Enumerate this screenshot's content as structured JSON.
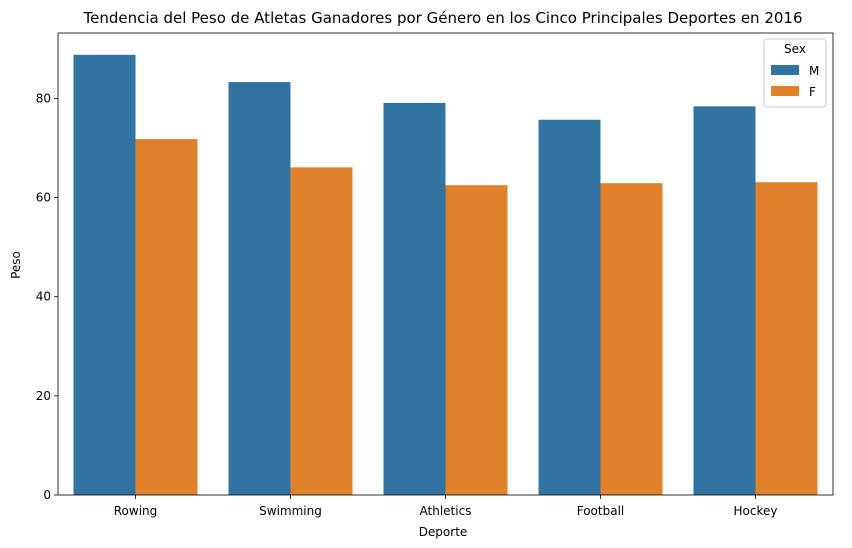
{
  "chart_data": {
    "type": "bar",
    "title": "Tendencia del Peso de Atletas Ganadores por Género en los Cinco Principales Deportes en 2016",
    "xlabel": "Deporte",
    "ylabel": "Peso",
    "categories": [
      "Rowing",
      "Swimming",
      "Athletics",
      "Football",
      "Hockey"
    ],
    "series": [
      {
        "name": "M",
        "values": [
          88.8,
          83.3,
          79.1,
          75.7,
          78.4
        ]
      },
      {
        "name": "F",
        "values": [
          71.8,
          66.1,
          62.5,
          62.9,
          63.1
        ]
      }
    ],
    "yticks": [
      0,
      20,
      40,
      60,
      80
    ],
    "ylim": [
      0,
      93.2
    ],
    "legend": {
      "title": "Sex",
      "placement": "top-right"
    },
    "grid": false,
    "colors": {
      "M": "#3274a1",
      "F": "#e1812c"
    }
  }
}
